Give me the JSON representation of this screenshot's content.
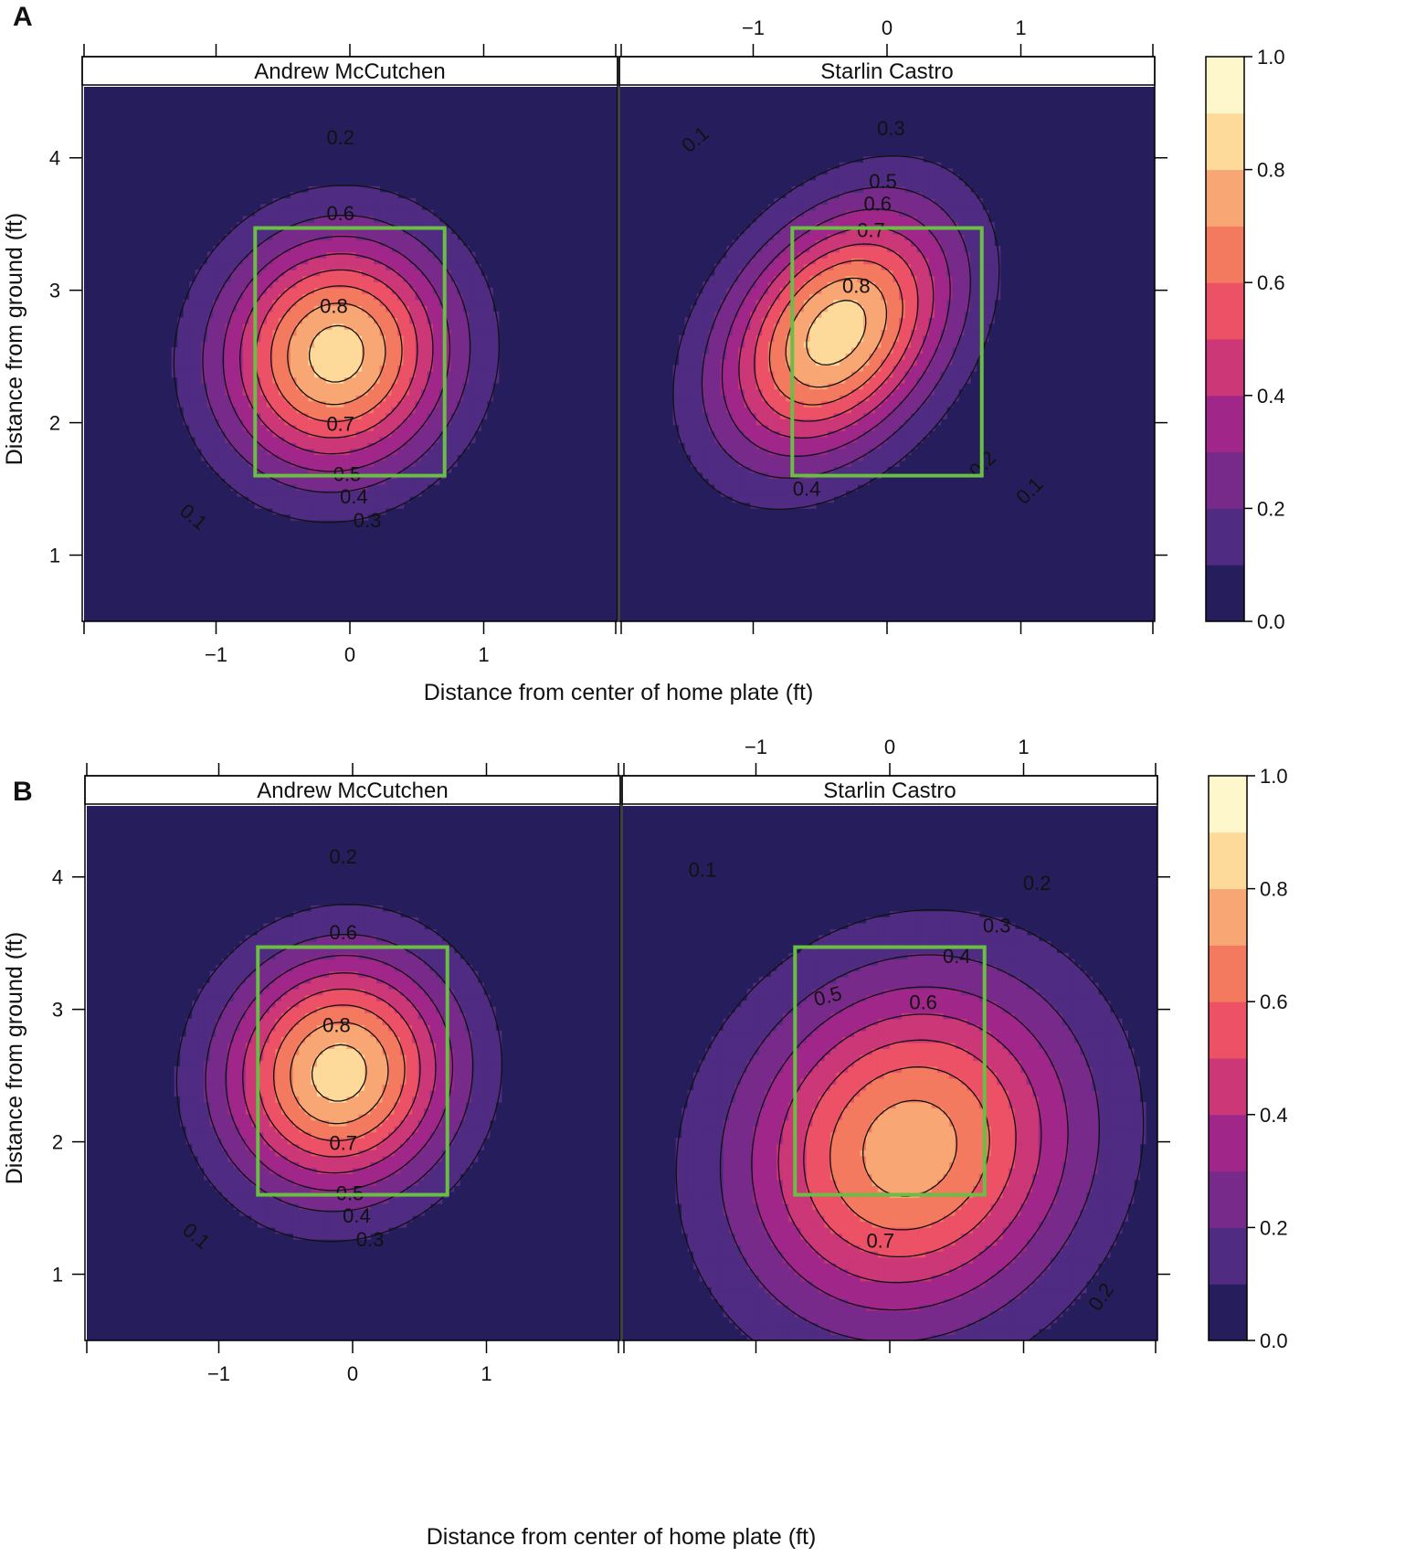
{
  "chart_data": [
    {
      "figure_label": "A",
      "type": "heatmap",
      "xlabel": "Distance from center of home plate (ft)",
      "ylabel": "Distance from ground (ft)",
      "xlim": [
        -2.0,
        2.0
      ],
      "ylim": [
        0.5,
        4.55
      ],
      "x_ticks": [
        -1,
        0,
        1
      ],
      "x_tick_labels": [
        "−1",
        "0",
        "1"
      ],
      "y_ticks": [
        1,
        2,
        3,
        4
      ],
      "y_tick_labels": [
        "1",
        "2",
        "3",
        "4"
      ],
      "colorbar": {
        "ticks": [
          0.0,
          0.2,
          0.4,
          0.6,
          0.8,
          1.0
        ],
        "tick_labels": [
          "0.0",
          "0.2",
          "0.4",
          "0.6",
          "0.8",
          "1.0"
        ],
        "levels": [
          0,
          0.1,
          0.2,
          0.3,
          0.4,
          0.5,
          0.6,
          0.7,
          0.8,
          0.9,
          1.0
        ]
      },
      "strike_zone": {
        "x": [
          -0.708,
          0.708
        ],
        "y": [
          1.6,
          3.47
        ]
      },
      "panels": [
        {
          "title": "Andrew McCutchen",
          "peak": {
            "x": -0.1,
            "y": 2.52,
            "value": 0.85
          },
          "spread": {
            "sx": 1.05,
            "sy": 1.1,
            "rho": 0.05
          },
          "contour_labels": [
            {
              "text": "0.2",
              "x": -0.07,
              "y": 4.1
            },
            {
              "text": "0.6",
              "x": -0.07,
              "y": 3.53
            },
            {
              "text": "0.8",
              "x": -0.12,
              "y": 2.83
            },
            {
              "text": "0.7",
              "x": -0.07,
              "y": 1.94
            },
            {
              "text": "0.5",
              "x": -0.02,
              "y": 1.56
            },
            {
              "text": "0.4",
              "x": 0.03,
              "y": 1.39
            },
            {
              "text": "0.3",
              "x": 0.13,
              "y": 1.21
            },
            {
              "text": "0.1",
              "x": -1.2,
              "y": 1.25,
              "angle": 40
            }
          ]
        },
        {
          "title": "Starlin Castro",
          "peak": {
            "x": -0.38,
            "y": 2.68,
            "value": 0.86
          },
          "spread": {
            "sx": 1.05,
            "sy": 1.15,
            "rho": 0.35
          },
          "contour_labels": [
            {
              "text": "0.1",
              "x": -1.4,
              "y": 4.1,
              "angle": -40
            },
            {
              "text": "0.3",
              "x": 0.03,
              "y": 4.17
            },
            {
              "text": "0.5",
              "x": -0.03,
              "y": 3.77
            },
            {
              "text": "0.6",
              "x": -0.07,
              "y": 3.6
            },
            {
              "text": "0.7",
              "x": -0.12,
              "y": 3.4
            },
            {
              "text": "0.8",
              "x": -0.23,
              "y": 2.98
            },
            {
              "text": "0.4",
              "x": -0.6,
              "y": 1.45
            },
            {
              "text": "0.2",
              "x": 0.75,
              "y": 1.65,
              "angle": -45
            },
            {
              "text": "0.1",
              "x": 1.1,
              "y": 1.45,
              "angle": -45
            }
          ]
        }
      ]
    },
    {
      "figure_label": "B",
      "type": "heatmap",
      "xlabel": "Distance from center of home plate (ft)",
      "ylabel": "Distance from ground (ft)",
      "xlim": [
        -2.0,
        2.0
      ],
      "ylim": [
        0.5,
        4.55
      ],
      "x_ticks": [
        -1,
        0,
        1
      ],
      "x_tick_labels": [
        "−1",
        "0",
        "1"
      ],
      "y_ticks": [
        1,
        2,
        3,
        4
      ],
      "y_tick_labels": [
        "1",
        "2",
        "3",
        "4"
      ],
      "colorbar": {
        "ticks": [
          0.0,
          0.2,
          0.4,
          0.6,
          0.8,
          1.0
        ],
        "tick_labels": [
          "0.0",
          "0.2",
          "0.4",
          "0.6",
          "0.8",
          "1.0"
        ],
        "levels": [
          0,
          0.1,
          0.2,
          0.3,
          0.4,
          0.5,
          0.6,
          0.7,
          0.8,
          0.9,
          1.0
        ]
      },
      "strike_zone": {
        "x": [
          -0.708,
          0.708
        ],
        "y": [
          1.6,
          3.47
        ]
      },
      "panels": [
        {
          "title": "Andrew McCutchen",
          "peak": {
            "x": -0.1,
            "y": 2.52,
            "value": 0.85
          },
          "spread": {
            "sx": 1.05,
            "sy": 1.1,
            "rho": 0.05
          },
          "contour_labels": [
            {
              "text": "0.2",
              "x": -0.07,
              "y": 4.1
            },
            {
              "text": "0.6",
              "x": -0.07,
              "y": 3.53
            },
            {
              "text": "0.8",
              "x": -0.12,
              "y": 2.83
            },
            {
              "text": "0.7",
              "x": -0.07,
              "y": 1.94
            },
            {
              "text": "0.5",
              "x": -0.02,
              "y": 1.56
            },
            {
              "text": "0.4",
              "x": 0.03,
              "y": 1.39
            },
            {
              "text": "0.3",
              "x": 0.13,
              "y": 1.21
            },
            {
              "text": "0.1",
              "x": -1.2,
              "y": 1.25,
              "angle": 40
            }
          ]
        },
        {
          "title": "Starlin Castro",
          "peak": {
            "x": 0.15,
            "y": 1.95,
            "value": 0.76
          },
          "spread": {
            "sx": 1.55,
            "sy": 1.6,
            "rho": 0.1
          },
          "contour_labels": [
            {
              "text": "0.1",
              "x": -1.4,
              "y": 4.0
            },
            {
              "text": "0.2",
              "x": 1.1,
              "y": 3.9
            },
            {
              "text": "0.3",
              "x": 0.8,
              "y": 3.58
            },
            {
              "text": "0.4",
              "x": 0.5,
              "y": 3.35
            },
            {
              "text": "0.5",
              "x": -0.45,
              "y": 3.05,
              "angle": -15
            },
            {
              "text": "0.6",
              "x": 0.25,
              "y": 3.0
            },
            {
              "text": "0.7",
              "x": -0.07,
              "y": 1.2
            },
            {
              "text": "0.2",
              "x": 1.62,
              "y": 0.8,
              "angle": -55
            }
          ]
        }
      ]
    }
  ],
  "colors": {
    "bands": [
      "#261e5c",
      "#4f2b82",
      "#782a8a",
      "#a0268a",
      "#cb3777",
      "#ec5166",
      "#f37a5e",
      "#f8a673",
      "#fdd99a",
      "#fef7cb"
    ],
    "strike_zone": "#6abe45"
  }
}
